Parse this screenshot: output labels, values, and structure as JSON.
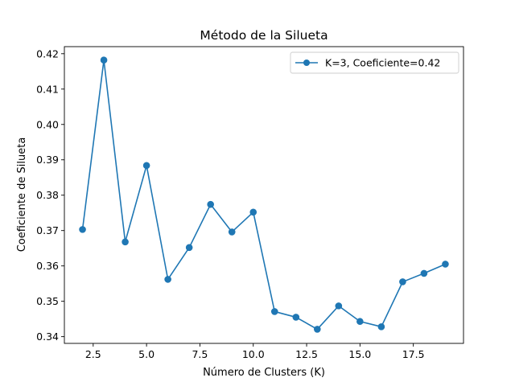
{
  "chart_data": {
    "type": "line",
    "title": "Método de la Silueta",
    "xlabel": "Número de Clusters (K)",
    "ylabel": "Coeficiente de Silueta",
    "xlim": [
      1.15,
      19.85
    ],
    "ylim": [
      0.3381,
      0.422
    ],
    "xticks": [
      2.5,
      5.0,
      7.5,
      10.0,
      12.5,
      15.0,
      17.5
    ],
    "xtick_labels": [
      "2.5",
      "5.0",
      "7.5",
      "10.0",
      "12.5",
      "15.0",
      "17.5"
    ],
    "yticks": [
      0.34,
      0.35,
      0.36,
      0.37,
      0.38,
      0.39,
      0.4,
      0.41,
      0.42
    ],
    "ytick_labels": [
      "0.34",
      "0.35",
      "0.36",
      "0.37",
      "0.38",
      "0.39",
      "0.40",
      "0.41",
      "0.42"
    ],
    "grid": false,
    "legend_position": "top-right",
    "series": [
      {
        "name": "K=3, Coeficiente=0.42",
        "color": "#1f77b4",
        "marker": "circle",
        "x": [
          2,
          3,
          4,
          5,
          6,
          7,
          8,
          9,
          10,
          11,
          12,
          13,
          14,
          15,
          16,
          17,
          18,
          19
        ],
        "values": [
          0.3703,
          0.4182,
          0.3668,
          0.3884,
          0.3562,
          0.3652,
          0.3774,
          0.3696,
          0.3752,
          0.3471,
          0.3455,
          0.3421,
          0.3487,
          0.3443,
          0.3428,
          0.3555,
          0.3579,
          0.3605
        ]
      }
    ]
  }
}
